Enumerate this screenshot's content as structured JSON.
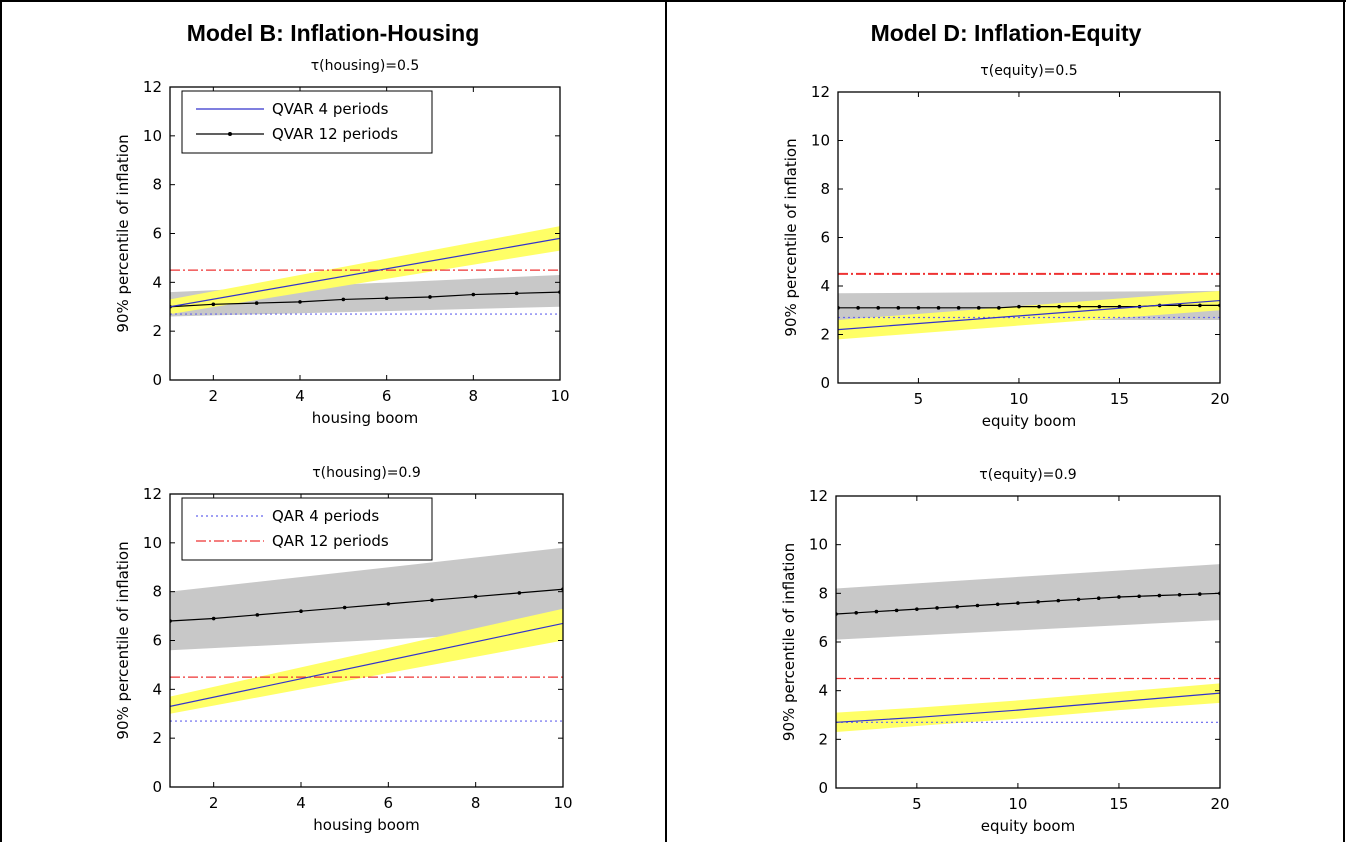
{
  "columns": [
    {
      "title": "Model B: Inflation-Housing"
    },
    {
      "title": "Model D: Inflation-Equity"
    }
  ],
  "colors": {
    "qvar4": "#3333cc",
    "qvar12": "#000000",
    "qar4": "#6666ee",
    "qar12": "#ee3333",
    "band_yellow": "#ffff66",
    "band_gray": "#c8c8c8"
  },
  "chart_data": [
    {
      "type": "line",
      "panel": "top-left",
      "title": "τ(housing)=0.5",
      "xlabel": "housing boom",
      "ylabel": "90% percentile of inflation",
      "xlim": [
        1,
        10
      ],
      "ylim": [
        0,
        12
      ],
      "xticks": [
        2,
        4,
        6,
        8,
        10
      ],
      "yticks": [
        0,
        2,
        4,
        6,
        8,
        10,
        12
      ],
      "legend": {
        "position": "top-left",
        "entries": [
          "QVAR 4 periods",
          "QVAR 12 periods"
        ]
      },
      "series": [
        {
          "name": "QVAR 4 periods",
          "x": [
            1,
            10
          ],
          "y": [
            3.0,
            5.8
          ],
          "band_lower": [
            2.7,
            5.3
          ],
          "band_upper": [
            3.3,
            6.3
          ]
        },
        {
          "name": "QVAR 12 periods",
          "x": [
            1,
            2,
            3,
            4,
            5,
            6,
            7,
            8,
            9,
            10
          ],
          "y": [
            3.0,
            3.1,
            3.15,
            3.2,
            3.3,
            3.35,
            3.4,
            3.5,
            3.55,
            3.6
          ],
          "band_lower": [
            2.6,
            3.0
          ],
          "band_upper": [
            3.6,
            4.3
          ]
        },
        {
          "name": "QAR 4 periods",
          "x": [
            1,
            10
          ],
          "y": [
            2.7,
            2.7
          ]
        },
        {
          "name": "QAR 12 periods",
          "x": [
            1,
            10
          ],
          "y": [
            4.5,
            4.5
          ]
        }
      ]
    },
    {
      "type": "line",
      "panel": "top-right",
      "title": "τ(equity)=0.5",
      "xlabel": "equity boom",
      "ylabel": "90% percentile of inflation",
      "xlim": [
        1,
        20
      ],
      "ylim": [
        0,
        12
      ],
      "xticks": [
        5,
        10,
        15,
        20
      ],
      "yticks": [
        0,
        2,
        4,
        6,
        8,
        10,
        12
      ],
      "series": [
        {
          "name": "QVAR 4 periods",
          "x": [
            1,
            20
          ],
          "y": [
            2.2,
            3.4
          ],
          "band_lower": [
            1.8,
            3.0
          ],
          "band_upper": [
            2.6,
            3.8
          ]
        },
        {
          "name": "QVAR 12 periods",
          "x": [
            1,
            2,
            3,
            4,
            5,
            6,
            7,
            8,
            9,
            10,
            11,
            12,
            13,
            14,
            15,
            16,
            17,
            18,
            19,
            20
          ],
          "y": [
            3.1,
            3.1,
            3.1,
            3.1,
            3.1,
            3.1,
            3.1,
            3.1,
            3.1,
            3.15,
            3.15,
            3.15,
            3.15,
            3.15,
            3.15,
            3.15,
            3.2,
            3.2,
            3.2,
            3.2
          ],
          "band_lower": [
            2.6,
            2.6
          ],
          "band_upper": [
            3.7,
            3.8
          ]
        },
        {
          "name": "QAR 4 periods",
          "x": [
            1,
            20
          ],
          "y": [
            2.7,
            2.7
          ]
        },
        {
          "name": "QAR 12 periods",
          "x": [
            1,
            20
          ],
          "y": [
            4.5,
            4.5
          ]
        }
      ]
    },
    {
      "type": "line",
      "panel": "bottom-left",
      "title": "τ(housing)=0.9",
      "xlabel": "housing boom",
      "ylabel": "90% percentile of inflation",
      "xlim": [
        1,
        10
      ],
      "ylim": [
        0,
        12
      ],
      "xticks": [
        2,
        4,
        6,
        8,
        10
      ],
      "yticks": [
        0,
        2,
        4,
        6,
        8,
        10,
        12
      ],
      "legend": {
        "position": "top-left",
        "entries": [
          "QAR 4 periods",
          "QAR 12 periods"
        ]
      },
      "series": [
        {
          "name": "QVAR 4 periods",
          "x": [
            1,
            10
          ],
          "y": [
            3.3,
            6.7
          ],
          "band_lower": [
            3.0,
            6.0
          ],
          "band_upper": [
            3.7,
            7.3
          ]
        },
        {
          "name": "QVAR 12 periods",
          "x": [
            1,
            2,
            3,
            4,
            5,
            6,
            7,
            8,
            9,
            10
          ],
          "y": [
            6.8,
            6.9,
            7.05,
            7.2,
            7.35,
            7.5,
            7.65,
            7.8,
            7.95,
            8.1
          ],
          "band_lower": [
            5.6,
            6.4
          ],
          "band_upper": [
            8.0,
            9.8
          ]
        },
        {
          "name": "QAR 4 periods",
          "x": [
            1,
            10
          ],
          "y": [
            2.7,
            2.7
          ]
        },
        {
          "name": "QAR 12 periods",
          "x": [
            1,
            10
          ],
          "y": [
            4.5,
            4.5
          ]
        }
      ]
    },
    {
      "type": "line",
      "panel": "bottom-right",
      "title": "τ(equity)=0.9",
      "xlabel": "equity boom",
      "ylabel": "90% percentile of inflation",
      "xlim": [
        1,
        20
      ],
      "ylim": [
        0,
        12
      ],
      "xticks": [
        5,
        10,
        15,
        20
      ],
      "yticks": [
        0,
        2,
        4,
        6,
        8,
        10,
        12
      ],
      "series": [
        {
          "name": "QVAR 4 periods",
          "x": [
            1,
            5,
            10,
            15,
            20
          ],
          "y": [
            2.7,
            2.9,
            3.2,
            3.55,
            3.9
          ],
          "band_lower": [
            2.3,
            2.55,
            2.85,
            3.2,
            3.5
          ],
          "band_upper": [
            3.1,
            3.3,
            3.6,
            3.95,
            4.3
          ]
        },
        {
          "name": "QVAR 12 periods",
          "x": [
            1,
            2,
            3,
            4,
            5,
            6,
            7,
            8,
            9,
            10,
            11,
            12,
            13,
            14,
            15,
            16,
            17,
            18,
            19,
            20
          ],
          "y": [
            7.15,
            7.2,
            7.25,
            7.3,
            7.35,
            7.4,
            7.45,
            7.5,
            7.55,
            7.6,
            7.65,
            7.7,
            7.75,
            7.8,
            7.85,
            7.88,
            7.91,
            7.94,
            7.97,
            8.0
          ],
          "band_lower": [
            6.1,
            6.9
          ],
          "band_upper": [
            8.2,
            9.2
          ]
        },
        {
          "name": "QAR 4 periods",
          "x": [
            1,
            20
          ],
          "y": [
            2.7,
            2.7
          ]
        },
        {
          "name": "QAR 12 periods",
          "x": [
            1,
            20
          ],
          "y": [
            4.5,
            4.5
          ]
        }
      ]
    }
  ]
}
